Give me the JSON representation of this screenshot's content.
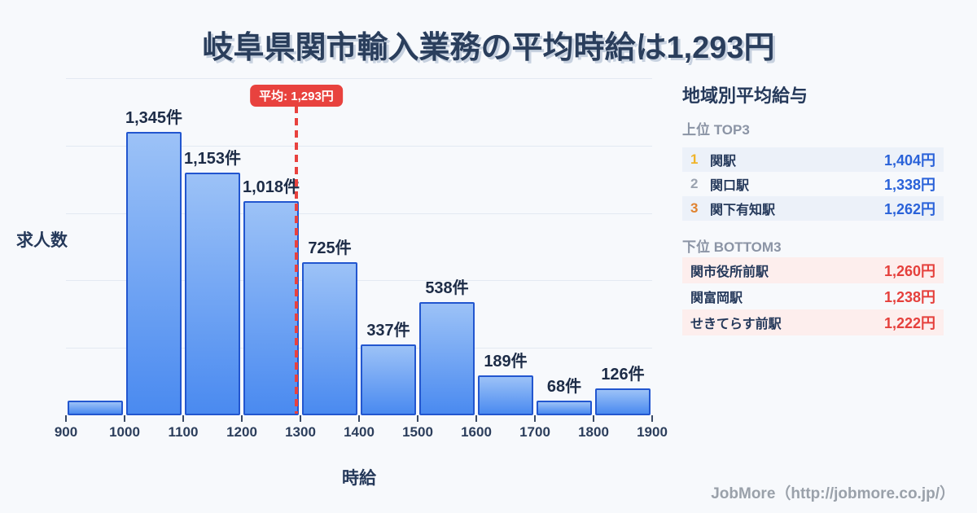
{
  "title": "岐阜県関市輸入業務の平均時給は1,293円",
  "chart_data": {
    "type": "bar",
    "title": "岐阜県関市輸入業務の平均時給は1,293円",
    "xlabel": "時給",
    "ylabel": "求人数",
    "bin_edges": [
      900,
      1000,
      1100,
      1200,
      1300,
      1400,
      1500,
      1600,
      1700,
      1800,
      1900
    ],
    "x_tick_labels": [
      "900",
      "1000",
      "1100",
      "1200",
      "1300",
      "1400",
      "1500",
      "1600",
      "1700",
      "1800",
      "1900"
    ],
    "values": [
      70,
      1345,
      1153,
      1018,
      725,
      337,
      538,
      189,
      68,
      126
    ],
    "bar_labels": [
      "",
      "1,345件",
      "1,153件",
      "1,018件",
      "725件",
      "337件",
      "538件",
      "189件",
      "68件",
      "126件"
    ],
    "average_value": 1293,
    "average_label": "平均: 1,293円",
    "grid": "horizontal-only",
    "legend": "none"
  },
  "sidebar": {
    "title": "地域別平均給与",
    "top3": {
      "heading": "上位 TOP3",
      "rows": [
        {
          "rank": "1",
          "rank_color": "#f0b42a",
          "name": "関駅",
          "value": "1,404円"
        },
        {
          "rank": "2",
          "rank_color": "#9ba3b0",
          "name": "関口駅",
          "value": "1,338円"
        },
        {
          "rank": "3",
          "rank_color": "#e0822f",
          "name": "関下有知駅",
          "value": "1,262円"
        }
      ]
    },
    "bottom3": {
      "heading": "下位 BOTTOM3",
      "rows": [
        {
          "name": "関市役所前駅",
          "value": "1,260円"
        },
        {
          "name": "関富岡駅",
          "value": "1,238円"
        },
        {
          "name": "せきてらす前駅",
          "value": "1,222円"
        }
      ]
    }
  },
  "footer": {
    "credit": "JobMore（http://jobmore.co.jp/）"
  },
  "colors": {
    "background": "#f7f9fc",
    "title_navy": "#2a3e5c",
    "accent_red": "#e8423e",
    "bar_border_blue": "#2256cf",
    "bar_gradient_top": "#9cc2f7",
    "bar_gradient_bottom": "#4a8af0",
    "value_blue": "#2a62d9",
    "value_red": "#e5403c",
    "row_blue_bg": "#ecf1f9",
    "row_pink_bg": "#fdeeed"
  }
}
